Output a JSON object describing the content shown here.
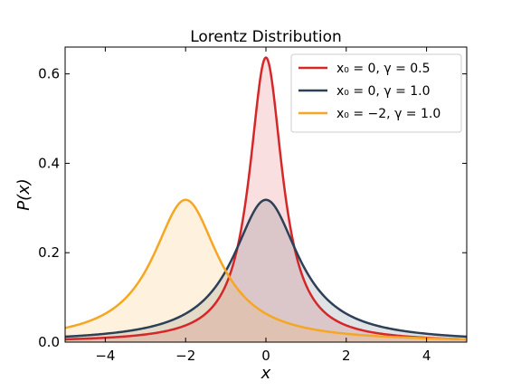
{
  "chart_data": {
    "type": "area",
    "title": "Lorentz Distribution",
    "xlabel": "x",
    "ylabel": "P(x)",
    "xlim": [
      -5,
      5
    ],
    "ylim": [
      0,
      0.66
    ],
    "x_ticks": [
      -4,
      -2,
      0,
      2,
      4
    ],
    "x_tick_labels": [
      "−4",
      "−2",
      "0",
      "2",
      "4"
    ],
    "y_ticks": [
      0.0,
      0.2,
      0.4,
      0.6
    ],
    "y_tick_labels": [
      "0.0",
      "0.2",
      "0.4",
      "0.6"
    ],
    "grid": false,
    "legend_position": "top-right",
    "series": [
      {
        "name": "x₀ = 0, γ = 0.5",
        "x0": 0,
        "gamma": 0.5,
        "color": "#d62728",
        "x": [
          -5,
          -4,
          -3,
          -2,
          -1.5,
          -1,
          -0.75,
          -0.5,
          -0.25,
          0,
          0.25,
          0.5,
          0.75,
          1,
          1.5,
          2,
          3,
          4,
          5
        ],
        "y": [
          0.0063,
          0.0098,
          0.0172,
          0.0374,
          0.0637,
          0.1273,
          0.1959,
          0.3183,
          0.5093,
          0.6366,
          0.5093,
          0.3183,
          0.1959,
          0.1273,
          0.0637,
          0.0374,
          0.0172,
          0.0098,
          0.0063
        ]
      },
      {
        "name": "x₀ = 0, γ = 1.0",
        "x0": 0,
        "gamma": 1.0,
        "color": "#2e4057",
        "x": [
          -5,
          -4,
          -3,
          -2,
          -1.5,
          -1,
          -0.5,
          0,
          0.5,
          1,
          1.5,
          2,
          3,
          4,
          5
        ],
        "y": [
          0.0122,
          0.0187,
          0.0318,
          0.0637,
          0.0979,
          0.1592,
          0.2546,
          0.3183,
          0.2546,
          0.1592,
          0.0979,
          0.0637,
          0.0318,
          0.0187,
          0.0122
        ]
      },
      {
        "name": "x₀ = −2, γ = 1.0",
        "x0": -2,
        "gamma": 1.0,
        "color": "#f5a623",
        "x": [
          -5,
          -4,
          -3.5,
          -3,
          -2.5,
          -2,
          -1.5,
          -1,
          -0.5,
          0,
          1,
          2,
          3,
          4,
          5
        ],
        "y": [
          0.0318,
          0.0637,
          0.0979,
          0.1592,
          0.2546,
          0.3183,
          0.2546,
          0.1592,
          0.0979,
          0.0637,
          0.0318,
          0.0187,
          0.0122,
          0.0086,
          0.0064
        ]
      }
    ]
  }
}
